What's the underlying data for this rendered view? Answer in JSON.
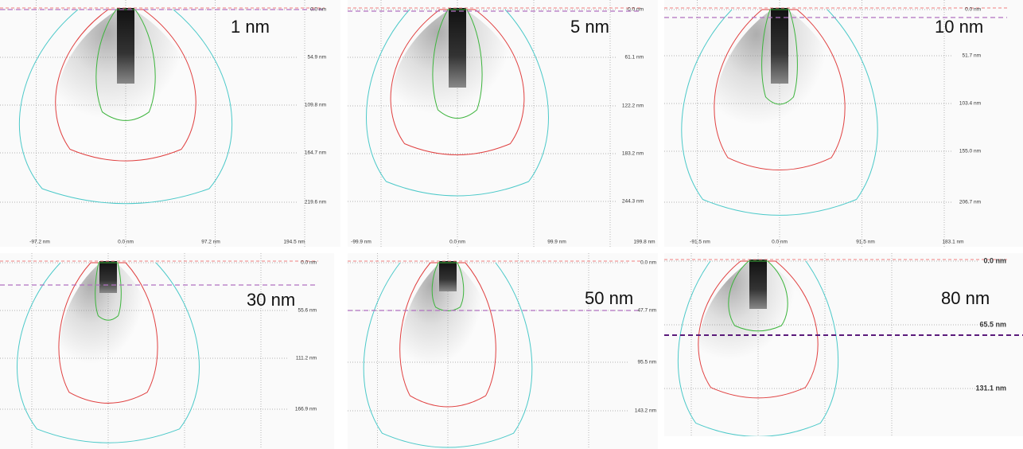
{
  "panels": [
    {
      "label": "1 nm",
      "yticks": [
        "0.0 nm",
        "54.9 nm",
        "109.8 nm",
        "164.7 nm",
        "219.6 nm"
      ],
      "xticks": [
        "-97.2 nm",
        "0.0 nm",
        "97.2 nm",
        "194.5 nm"
      ]
    },
    {
      "label": "5 nm",
      "yticks": [
        "-0.0 nm",
        "61.1 nm",
        "122.2 nm",
        "183.2 nm",
        "244.3 nm"
      ],
      "xticks": [
        "-99.9 nm",
        "0.0 nm",
        "99.9 nm",
        "199.8 nm"
      ]
    },
    {
      "label": "10 nm",
      "yticks": [
        "0.0 nm",
        "51.7 nm",
        "103.4 nm",
        "155.0 nm",
        "206.7 nm"
      ],
      "xticks": [
        "-91.5 nm",
        "0.0 nm",
        "91.5 nm",
        "183.1 nm"
      ]
    },
    {
      "label": "30 nm",
      "yticks": [
        "0.0 nm",
        "55.6 nm",
        "111.2 nm",
        "166.9 nm"
      ]
    },
    {
      "label": "50 nm",
      "yticks": [
        "0.0 nm",
        "47.7 nm",
        "95.5 nm",
        "143.2 nm"
      ]
    },
    {
      "label": "80 nm",
      "yticks": [
        "0.0 nm",
        "65.5 nm",
        "131.1 nm"
      ]
    }
  ]
}
